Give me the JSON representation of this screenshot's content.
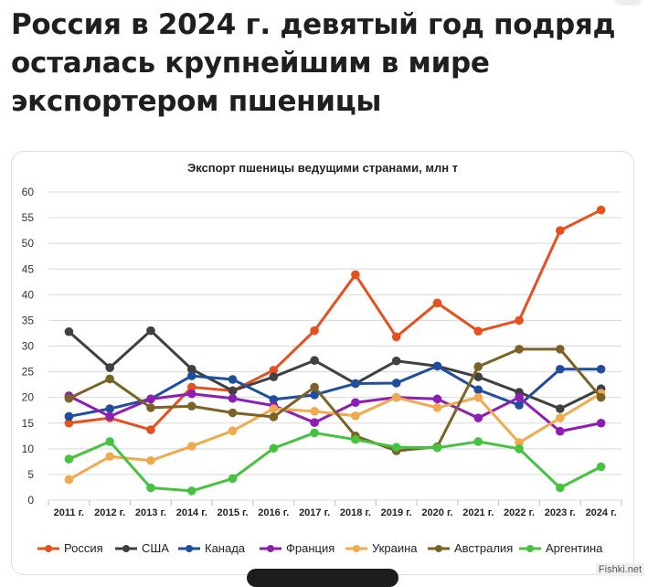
{
  "headline": "Россия в 2024 г. девятый год подряд осталась крупнейшим в мире экспортером пшеницы",
  "watermark": "Fishki.net",
  "chart_data": {
    "type": "line",
    "title": "Экспорт пшеницы ведущими странами, млн т",
    "xlabel": "",
    "ylabel": "",
    "categories": [
      "2011 г.",
      "2012 г.",
      "2013 г.",
      "2014 г.",
      "2015 г.",
      "2016 г.",
      "2017 г.",
      "2018 г.",
      "2019 г.",
      "2020 г.",
      "2021 г.",
      "2022 г.",
      "2023 г.",
      "2024 г."
    ],
    "ylim": [
      0,
      60
    ],
    "yticks": [
      0,
      5,
      10,
      15,
      20,
      25,
      30,
      35,
      40,
      45,
      50,
      55,
      60
    ],
    "grid": "horizontal",
    "legend_position": "bottom",
    "series": [
      {
        "name": "Россия",
        "color": "#e5501f",
        "values": [
          15.0,
          16.0,
          13.7,
          22.0,
          21.3,
          25.3,
          33.0,
          43.9,
          31.8,
          38.4,
          32.9,
          35.0,
          52.5,
          56.5
        ]
      },
      {
        "name": "США",
        "color": "#404040",
        "values": [
          32.8,
          25.8,
          33.0,
          25.5,
          21.3,
          24.0,
          27.2,
          22.7,
          27.1,
          26.1,
          24.0,
          21.0,
          17.8,
          21.7
        ]
      },
      {
        "name": "Канада",
        "color": "#1f4e9c",
        "values": [
          16.3,
          17.8,
          19.7,
          24.2,
          23.5,
          19.6,
          20.5,
          22.7,
          22.8,
          26.1,
          21.5,
          18.5,
          25.5,
          25.5
        ]
      },
      {
        "name": "Франция",
        "color": "#8e1db5",
        "values": [
          20.3,
          16.3,
          19.7,
          20.7,
          19.8,
          18.4,
          15.1,
          19.0,
          20.0,
          19.7,
          16.0,
          20.0,
          13.4,
          15.0
        ]
      },
      {
        "name": "Украина",
        "color": "#f0a94d",
        "values": [
          4.0,
          8.5,
          7.7,
          10.5,
          13.5,
          17.8,
          17.3,
          16.4,
          20.0,
          18.0,
          20.0,
          11.2,
          16.0,
          20.8
        ]
      },
      {
        "name": "Австралия",
        "color": "#7b6227",
        "values": [
          19.8,
          23.6,
          18.0,
          18.3,
          17.0,
          16.2,
          22.0,
          12.5,
          9.6,
          10.4,
          26.0,
          29.4,
          29.4,
          20.0
        ]
      },
      {
        "name": "Аргентина",
        "color": "#45c33f",
        "values": [
          8.0,
          11.4,
          2.4,
          1.8,
          4.2,
          10.1,
          13.1,
          11.8,
          10.3,
          10.2,
          11.4,
          10.0,
          2.4,
          6.5
        ]
      }
    ]
  }
}
